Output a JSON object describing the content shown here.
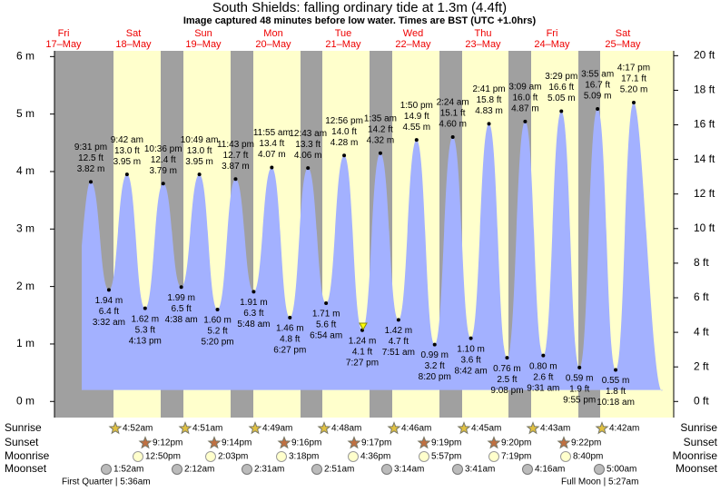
{
  "chart_data": {
    "type": "tide",
    "title": "South Shields: falling  ordinary tide at 1.3m (4.4ft)",
    "subtitle": "Image captured 48 minutes before low water. Times are BST (UTC +1.0hrs)",
    "days": [
      {
        "dow": "Fri",
        "date": "17–May"
      },
      {
        "dow": "Sat",
        "date": "18–May"
      },
      {
        "dow": "Sun",
        "date": "19–May"
      },
      {
        "dow": "Mon",
        "date": "20–May"
      },
      {
        "dow": "Tue",
        "date": "21–May"
      },
      {
        "dow": "Wed",
        "date": "22–May"
      },
      {
        "dow": "Thu",
        "date": "23–May"
      },
      {
        "dow": "Fri",
        "date": "24–May"
      },
      {
        "dow": "Sat",
        "date": "25–May"
      }
    ],
    "categories": [
      "9:31 pm",
      "3:32 am",
      "9:42 am",
      "4:13 pm",
      "10:36 pm",
      "4:38 am",
      "10:49 am",
      "5:20 pm",
      "11:43 pm",
      "5:48 am",
      "11:55 am",
      "6:27 pm",
      "12:43 am",
      "6:54 am",
      "12:56 pm",
      "7:27 pm",
      "1:35 am",
      "7:51 am",
      "1:50 pm",
      "8:20 pm",
      "2:24 am",
      "8:42 am",
      "2:41 pm",
      "9:08 pm",
      "3:09 am",
      "9:31 am",
      "3:29 pm",
      "9:55 pm",
      "3:55 am",
      "10:18 am",
      "4:17 pm"
    ],
    "values": [
      3.82,
      1.94,
      3.95,
      1.62,
      3.79,
      1.99,
      3.95,
      1.6,
      3.87,
      1.91,
      4.07,
      1.46,
      4.06,
      1.71,
      4.28,
      1.24,
      4.32,
      1.42,
      4.55,
      0.99,
      4.6,
      1.1,
      4.83,
      0.76,
      4.87,
      0.8,
      5.05,
      0.59,
      5.09,
      0.55,
      5.2
    ],
    "value_labels": [
      "3.82 m",
      "1.94 m",
      "3.95 m",
      "1.62 m",
      "3.79 m",
      "1.99 m",
      "3.95 m",
      "1.60 m",
      "3.87 m",
      "1.91 m",
      "4.07 m",
      "1.46 m",
      "4.06 m",
      "1.71 m",
      "4.28 m",
      "1.24 m",
      "4.32 m",
      "1.42 m",
      "4.55 m",
      "0.99 m",
      "4.60 m",
      "1.10 m",
      "4.83 m",
      "0.76 m",
      "4.87 m",
      "0.80 m",
      "5.05 m",
      "0.59 m",
      "5.09 m",
      "0.55 m",
      "5.20 m"
    ],
    "y2_values": [
      12.5,
      6.4,
      13.0,
      5.3,
      12.4,
      6.5,
      13.0,
      5.2,
      12.7,
      6.3,
      13.4,
      4.8,
      13.3,
      5.6,
      14.0,
      4.1,
      14.2,
      4.7,
      14.9,
      3.2,
      15.1,
      3.6,
      15.8,
      2.5,
      16.0,
      2.6,
      16.6,
      1.9,
      16.7,
      1.8,
      17.1
    ],
    "y2_value_labels": [
      "12.5 ft",
      "6.4 ft",
      "13.0 ft",
      "5.3 ft",
      "12.4 ft",
      "6.5 ft",
      "13.0 ft",
      "5.2 ft",
      "12.7 ft",
      "6.3 ft",
      "13.4 ft",
      "4.8 ft",
      "13.3 ft",
      "5.6 ft",
      "14.0 ft",
      "4.1 ft",
      "14.2 ft",
      "4.7 ft",
      "14.9 ft",
      "3.2 ft",
      "15.1 ft",
      "3.6 ft",
      "15.8 ft",
      "2.5 ft",
      "16.0 ft",
      "2.6 ft",
      "16.6 ft",
      "1.9 ft",
      "16.7 ft",
      "1.8 ft",
      "17.1 ft"
    ],
    "color": "#a3b1ff",
    "ylim": [
      -0.28,
      6.1
    ],
    "yticks": [
      {
        "value": 0,
        "label": "0 m"
      },
      {
        "value": 1,
        "label": "1 m"
      },
      {
        "value": 2,
        "label": "2 m"
      },
      {
        "value": 3,
        "label": "3 m"
      },
      {
        "value": 4,
        "label": "4 m"
      },
      {
        "value": 5,
        "label": "5 m"
      },
      {
        "value": 6,
        "label": "6 m"
      }
    ],
    "y2lim": [
      -0.93,
      20.28
    ],
    "y2ticks": [
      {
        "value": 0,
        "label": "0 ft"
      },
      {
        "value": 2,
        "label": "2 ft"
      },
      {
        "value": 4,
        "label": "4 ft"
      },
      {
        "value": 6,
        "label": "6 ft"
      },
      {
        "value": 8,
        "label": "8 ft"
      },
      {
        "value": 10,
        "label": "10 ft"
      },
      {
        "value": 12,
        "label": "12 ft"
      },
      {
        "value": 14,
        "label": "14 ft"
      },
      {
        "value": 16,
        "label": "16 ft"
      },
      {
        "value": 18,
        "label": "18 ft"
      },
      {
        "value": 20,
        "label": "20 ft"
      }
    ]
  },
  "almanac": {
    "row_labels": [
      "Sunrise",
      "Sunset",
      "Moonrise",
      "Moonset"
    ],
    "sunrise": [
      "4:52am",
      "4:51am",
      "4:49am",
      "4:48am",
      "4:46am",
      "4:45am",
      "4:43am",
      "4:42am"
    ],
    "sunset": [
      "9:12pm",
      "9:14pm",
      "9:16pm",
      "9:17pm",
      "9:19pm",
      "9:20pm",
      "9:22pm"
    ],
    "moonrise": [
      "12:50pm",
      "2:03pm",
      "3:18pm",
      "4:36pm",
      "5:57pm",
      "7:19pm",
      "8:40pm"
    ],
    "moonset": [
      "1:52am",
      "2:12am",
      "2:31am",
      "2:51am",
      "3:14am",
      "3:41am",
      "4:16am",
      "5:00am"
    ],
    "notes": [
      "First Quarter | 5:36am",
      "Full Moon | 5:27am"
    ]
  }
}
